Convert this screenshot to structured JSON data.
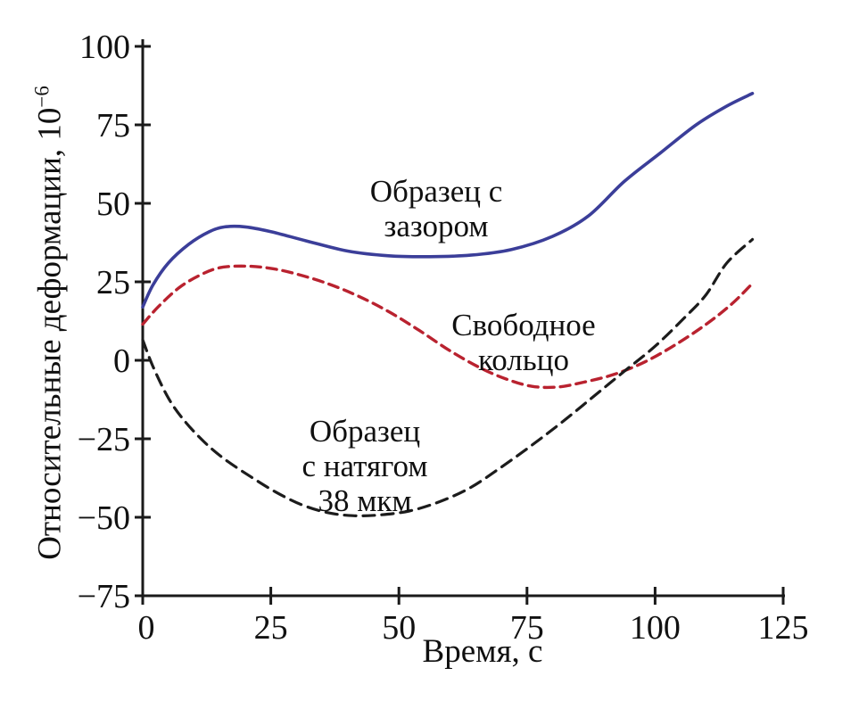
{
  "figure": {
    "background": "#ffffff",
    "axis_color": "#1a1a1a"
  },
  "chart_data": {
    "type": "line",
    "title": "",
    "xlabel": "Время, с",
    "ylabel": "Относительные деформации, 10⁻⁶",
    "ylabel_main": "Относительные деформации, 10",
    "ylabel_sup": "−6",
    "xlim": [
      0,
      125
    ],
    "ylim": [
      -75,
      100
    ],
    "x_ticks": [
      0,
      25,
      50,
      75,
      100,
      125
    ],
    "x_tick_labels": [
      "0",
      "25",
      "50",
      "75",
      "100",
      "125"
    ],
    "y_ticks": [
      100,
      75,
      50,
      25,
      0,
      -25,
      -50,
      -75
    ],
    "y_tick_labels": [
      "100",
      "75",
      "50",
      "25",
      "0",
      "−25",
      "−50",
      "−75"
    ],
    "grid": false,
    "legend_position": "inline-annotations",
    "series": [
      {
        "id": "gap-sample",
        "name": "Образец с зазором",
        "style": "solid",
        "color": "#3b3e99",
        "points": [
          [
            0,
            17
          ],
          [
            2,
            24
          ],
          [
            5,
            31
          ],
          [
            9,
            37
          ],
          [
            13,
            41
          ],
          [
            16,
            42.5
          ],
          [
            20,
            42.5
          ],
          [
            25,
            41
          ],
          [
            32,
            38
          ],
          [
            40,
            34.8
          ],
          [
            48,
            33.3
          ],
          [
            56,
            33
          ],
          [
            64,
            33.5
          ],
          [
            72,
            35.3
          ],
          [
            80,
            39.5
          ],
          [
            87,
            46
          ],
          [
            94,
            57
          ],
          [
            101,
            66
          ],
          [
            108,
            75
          ],
          [
            114,
            81
          ],
          [
            119,
            85
          ]
        ]
      },
      {
        "id": "free-ring",
        "name": "Свободное кольцо",
        "style": "dashed",
        "color": "#b9222f",
        "points": [
          [
            0,
            11.5
          ],
          [
            3,
            17
          ],
          [
            7,
            23
          ],
          [
            11,
            27
          ],
          [
            15,
            29.5
          ],
          [
            20,
            30
          ],
          [
            25,
            29.3
          ],
          [
            30,
            27.5
          ],
          [
            36,
            24.5
          ],
          [
            42,
            20.5
          ],
          [
            48,
            15.5
          ],
          [
            54,
            9.5
          ],
          [
            60,
            3
          ],
          [
            66,
            -2.5
          ],
          [
            71,
            -6
          ],
          [
            76,
            -8.3
          ],
          [
            81,
            -8.5
          ],
          [
            86,
            -7
          ],
          [
            92,
            -4.5
          ],
          [
            98,
            -0.5
          ],
          [
            104,
            5
          ],
          [
            110,
            11.5
          ],
          [
            115,
            18
          ],
          [
            119,
            24.5
          ]
        ]
      },
      {
        "id": "interference-sample",
        "name": "Образец с натягом 38 мкм",
        "style": "dashed",
        "color": "#1c1c1c",
        "points": [
          [
            0,
            6.5
          ],
          [
            2,
            -2
          ],
          [
            5,
            -12
          ],
          [
            8,
            -19
          ],
          [
            12,
            -26
          ],
          [
            16,
            -31.5
          ],
          [
            21,
            -37
          ],
          [
            26,
            -42
          ],
          [
            31,
            -46
          ],
          [
            36,
            -48.5
          ],
          [
            41,
            -49.5
          ],
          [
            46,
            -49.3
          ],
          [
            52,
            -48
          ],
          [
            58,
            -45
          ],
          [
            64,
            -40.5
          ],
          [
            70,
            -34
          ],
          [
            76,
            -27
          ],
          [
            82,
            -19.5
          ],
          [
            88,
            -11.5
          ],
          [
            94,
            -3.5
          ],
          [
            100,
            4.5
          ],
          [
            106,
            14
          ],
          [
            110,
            21
          ],
          [
            114,
            31
          ],
          [
            119,
            38.5
          ]
        ]
      }
    ],
    "annotations": [
      {
        "id": "gap-sample",
        "text": "Образец с\nзазором"
      },
      {
        "id": "free-ring",
        "text": "Свободное\nкольцо"
      },
      {
        "id": "interference-sample",
        "text": "Образец\nс натягом\n38 мкм"
      }
    ]
  }
}
